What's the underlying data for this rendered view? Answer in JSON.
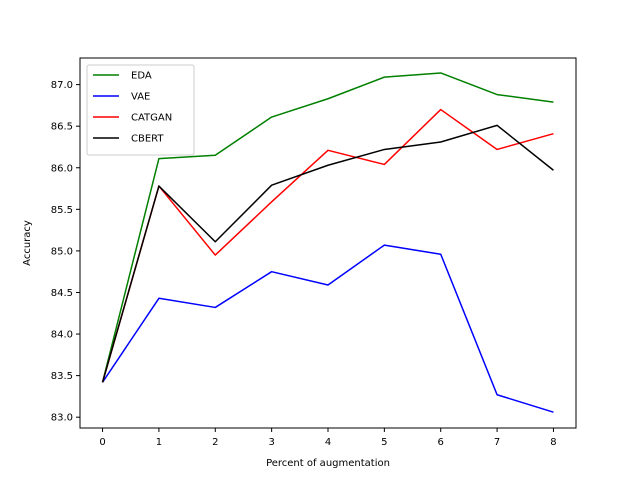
{
  "chart_data": {
    "type": "line",
    "title": "",
    "xlabel": "Percent of augmentation",
    "ylabel": "Accuracy",
    "xlim": [
      -0.4,
      8.4
    ],
    "ylim": [
      82.87,
      87.32
    ],
    "x": [
      0,
      1,
      2,
      3,
      4,
      5,
      6,
      7,
      8
    ],
    "xticks": [
      0,
      1,
      2,
      3,
      4,
      5,
      6,
      7,
      8
    ],
    "yticks": [
      83.0,
      83.5,
      84.0,
      84.5,
      85.0,
      85.5,
      86.0,
      86.5,
      87.0
    ],
    "legend_position": "top-left",
    "grid": false,
    "series": [
      {
        "name": "EDA",
        "color": "#008000",
        "values": [
          83.42,
          86.11,
          86.15,
          86.61,
          86.83,
          87.09,
          87.14,
          86.88,
          86.79
        ]
      },
      {
        "name": "VAE",
        "color": "#0000ff",
        "values": [
          83.42,
          84.43,
          84.32,
          84.75,
          84.59,
          85.07,
          84.96,
          83.27,
          83.06
        ]
      },
      {
        "name": "CATGAN",
        "color": "#ff0000",
        "values": [
          83.42,
          85.78,
          84.95,
          85.59,
          86.21,
          86.04,
          86.7,
          86.22,
          86.41
        ]
      },
      {
        "name": "CBERT",
        "color": "#000000",
        "values": [
          83.42,
          85.78,
          85.11,
          85.79,
          86.03,
          86.22,
          86.31,
          86.51,
          85.97
        ]
      }
    ]
  }
}
